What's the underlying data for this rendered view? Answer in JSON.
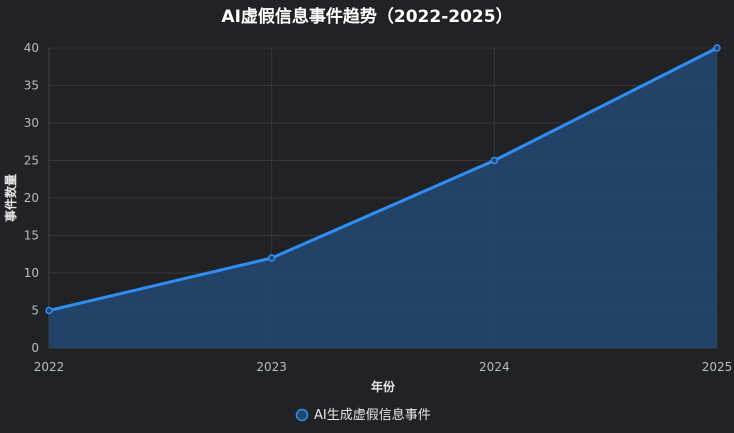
{
  "chart_data": {
    "type": "area",
    "title": "AI虚假信息事件趋势（2022-2025）",
    "xlabel": "年份",
    "ylabel": "事件数量",
    "categories": [
      "2022",
      "2023",
      "2024",
      "2025"
    ],
    "series": [
      {
        "name": "AI生成虚假信息事件",
        "values": [
          5,
          12,
          25,
          40
        ]
      }
    ],
    "ylim": [
      0,
      40
    ],
    "yticks": [
      0,
      5,
      10,
      15,
      20,
      25,
      30,
      35,
      40
    ],
    "grid": true,
    "legend_position": "bottom",
    "colors": {
      "background": "#212225",
      "line": "#2f8ef4",
      "fill": "#24456a",
      "grid": "#34373c",
      "text": "#e6e6e6",
      "tick_text": "#b7bbc2",
      "axis": "#3f4248"
    }
  }
}
